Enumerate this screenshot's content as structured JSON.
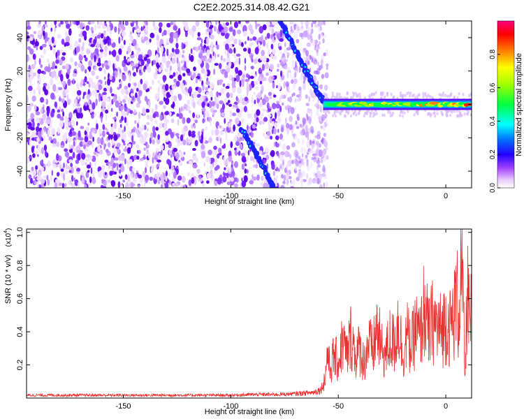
{
  "figure_title": "C2E2.2025.314.08.42.G21",
  "chart_data": [
    {
      "type": "heatmap",
      "title": "C2E2.2025.314.08.42.G21",
      "xlabel": "Height of straight line (km)",
      "ylabel": "Frequency (Hz)",
      "xlim": [
        -195,
        12
      ],
      "ylim": [
        -50,
        50
      ],
      "x_ticks": [
        -150,
        -100,
        -50,
        0
      ],
      "x_tick_labels": [
        "-150",
        "-100",
        "-50",
        "0"
      ],
      "y_ticks": [
        -40,
        -20,
        0,
        20,
        40
      ],
      "y_tick_labels": [
        "-40",
        "-20",
        "0",
        "20",
        "40"
      ],
      "colorbar": {
        "label": "Normalized spectral amplitude",
        "range": [
          0,
          1
        ],
        "ticks": [
          0.0,
          0.2,
          0.4,
          0.6,
          0.8
        ],
        "tick_labels": [
          "0.0",
          "0.2",
          "0.4",
          "0.6",
          "0.8"
        ],
        "colormap": [
          "#ffffff",
          "#d9a8ff",
          "#7a00ff",
          "#0000ff",
          "#00ffff",
          "#00ff00",
          "#ffff00",
          "#ff8000",
          "#ff0000",
          "#ff00a0"
        ]
      },
      "features": [
        {
          "name": "noise floor",
          "x_range": [
            -195,
            -57
          ],
          "frequency_range": [
            -50,
            50
          ],
          "amplitude": [
            0.0,
            0.2
          ]
        },
        {
          "name": "upper descending streak",
          "points": [
            [
              -77,
              50
            ],
            [
              -70,
              33
            ],
            [
              -65,
              20
            ],
            [
              -60,
              8
            ],
            [
              -57,
              2
            ]
          ],
          "amplitude": [
            0.2,
            0.4
          ]
        },
        {
          "name": "lower descending streak",
          "points": [
            [
              -95,
              -15
            ],
            [
              -88,
              -30
            ],
            [
              -82,
              -45
            ],
            [
              -80,
              -50
            ]
          ],
          "amplitude": [
            0.2,
            0.35
          ]
        },
        {
          "name": "zero-frequency band",
          "x_range": [
            -57,
            12
          ],
          "frequency": 0,
          "amplitude": [
            0.3,
            1.0
          ]
        }
      ],
      "grid": false
    },
    {
      "type": "line",
      "xlabel": "Height of straight line (km)",
      "ylabel": "SNR (10 * v/v)",
      "y_multiplier_label": "(x10",
      "y_multiplier_exponent": "4",
      "y_multiplier_close": ")",
      "xlim": [
        -195,
        12
      ],
      "ylim": [
        0,
        1.02
      ],
      "x_ticks": [
        -150,
        -100,
        -50,
        0
      ],
      "x_tick_labels": [
        "-150",
        "-100",
        "-50",
        "0"
      ],
      "y_ticks": [
        0.2,
        0.4,
        0.6,
        0.8,
        1.0
      ],
      "y_tick_labels": [
        "0.2",
        "0.4",
        "0.6",
        "0.8",
        "1.0"
      ],
      "series": [
        {
          "color": "#e8312f",
          "x": [
            -195,
            -180,
            -160,
            -140,
            -120,
            -100,
            -90,
            -80,
            -70,
            -62,
            -58,
            -56,
            -55,
            -54,
            -52,
            -50,
            -48,
            -46,
            -44,
            -42,
            -40,
            -38,
            -36,
            -34,
            -32,
            -30,
            -28,
            -26,
            -24,
            -22,
            -20,
            -18,
            -16,
            -14,
            -12,
            -10,
            -8,
            -6,
            -4,
            -2,
            0,
            2,
            4,
            5,
            6,
            7,
            8,
            9,
            10,
            11,
            12
          ],
          "y": [
            0.02,
            0.02,
            0.02,
            0.02,
            0.02,
            0.02,
            0.025,
            0.025,
            0.03,
            0.04,
            0.06,
            0.15,
            0.35,
            0.2,
            0.3,
            0.25,
            0.4,
            0.3,
            0.45,
            0.3,
            0.35,
            0.25,
            0.4,
            0.32,
            0.5,
            0.35,
            0.3,
            0.42,
            0.38,
            0.55,
            0.3,
            0.45,
            0.35,
            0.5,
            0.42,
            0.65,
            0.45,
            0.55,
            0.5,
            0.48,
            0.55,
            0.5,
            0.6,
            0.75,
            0.55,
            1.0,
            0.7,
            0.1,
            0.85,
            0.5,
            0.6
          ]
        }
      ],
      "grid": false
    }
  ]
}
